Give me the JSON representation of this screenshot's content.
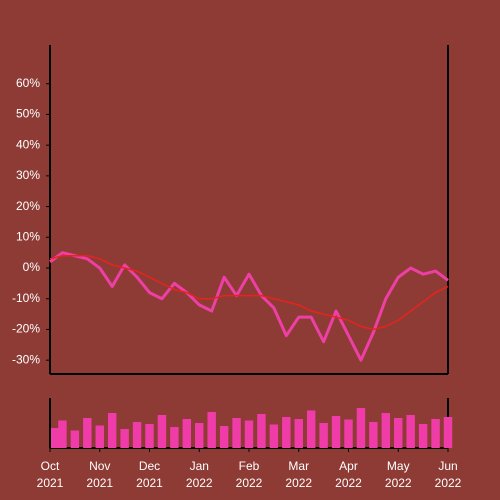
{
  "chart_data": {
    "type": "line",
    "x": [
      0,
      0.25,
      0.5,
      0.75,
      1,
      1.25,
      1.5,
      1.75,
      2,
      2.25,
      2.5,
      2.75,
      3,
      3.25,
      3.5,
      3.75,
      4,
      4.25,
      4.5,
      4.75,
      5,
      5.25,
      5.5,
      5.75,
      6,
      6.25,
      6.5,
      6.75,
      7,
      7.25,
      7.5,
      7.75,
      8
    ],
    "series": [
      {
        "color": "#ee3fa6",
        "values": [
          2,
          5,
          4,
          3,
          0,
          -6,
          1,
          -3,
          -8,
          -10,
          -5,
          -8,
          -12,
          -14,
          -3,
          -9,
          -2,
          -9,
          -13,
          -22,
          -16,
          -16,
          -24,
          -14,
          -22,
          -30,
          -21,
          -10,
          -3,
          0,
          -2,
          -1,
          -4
        ]
      },
      {
        "color": "#e8231e",
        "values": [
          3,
          4,
          4,
          4,
          3,
          1,
          0,
          -1,
          -3,
          -5,
          -7,
          -8,
          -10,
          -10,
          -9,
          -9,
          -9,
          -9,
          -10,
          -11,
          -12,
          -14,
          -15,
          -16,
          -17,
          -19,
          -20,
          -19,
          -17,
          -14,
          -11,
          -8,
          -6
        ]
      }
    ],
    "volume": {
      "color": "#f03ca8",
      "values": [
        40,
        55,
        35,
        60,
        45,
        70,
        38,
        52,
        48,
        66,
        42,
        58,
        50,
        72,
        44,
        60,
        55,
        68,
        47,
        62,
        58,
        75,
        50,
        64,
        57,
        80,
        52,
        70,
        60,
        66,
        48,
        58,
        62
      ]
    },
    "xlim": [
      0,
      8
    ],
    "xticks": [
      {
        "value": 0,
        "label": "Oct\n2021"
      },
      {
        "value": 1,
        "label": "Nov\n2021"
      },
      {
        "value": 2,
        "label": "Dec\n2021"
      },
      {
        "value": 3,
        "label": "Jan\n2022"
      },
      {
        "value": 4,
        "label": "Feb\n2022"
      },
      {
        "value": 5,
        "label": "Mar\n2022"
      },
      {
        "value": 6,
        "label": "Apr\n2022"
      },
      {
        "value": 7,
        "label": "May\n2022"
      },
      {
        "value": 8,
        "label": "Jun\n2022"
      }
    ],
    "ylim": [
      -34.5,
      72.6
    ],
    "yticks": [
      {
        "value": -30,
        "label": "-30%"
      },
      {
        "value": -20,
        "label": "-20%"
      },
      {
        "value": -10,
        "label": "-10%"
      },
      {
        "value": 0,
        "label": "0%"
      },
      {
        "value": 10,
        "label": "10%"
      },
      {
        "value": 20,
        "label": "20%"
      },
      {
        "value": 30,
        "label": "30%"
      },
      {
        "value": 40,
        "label": "40%"
      },
      {
        "value": 50,
        "label": "50%"
      },
      {
        "value": 60,
        "label": "60%"
      }
    ],
    "vlim": [
      0,
      100
    ]
  }
}
